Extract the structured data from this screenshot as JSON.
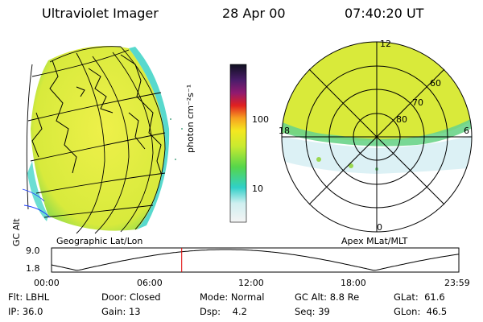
{
  "header": {
    "instrument": "Ultraviolet Imager",
    "date": "28 Apr 00",
    "time": "07:40:20 UT"
  },
  "colorbar": {
    "unit_label": "photon cm⁻²s⁻¹",
    "ticks": [
      "100",
      "10"
    ]
  },
  "panels": {
    "left_caption": "Geographic Lat/Lon",
    "right_caption": "Apex MLat/MLT",
    "polar": {
      "ring_labels": [
        "60",
        "70",
        "80"
      ],
      "mlt_labels": {
        "top": "12",
        "left": "18",
        "right": "6",
        "bottom": "0"
      }
    }
  },
  "altitude_plot": {
    "ylabel": "GC Alt",
    "y_ticks": [
      "9.0",
      "1.8"
    ],
    "x_ticks": [
      "00:00",
      "06:00",
      "12:00",
      "18:00",
      "23:59"
    ],
    "marker_hour": 7.67
  },
  "status": {
    "row1": [
      {
        "key": "Flt:",
        "value": "LBHL"
      },
      {
        "key": "Door:",
        "value": "Closed"
      },
      {
        "key": "Mode:",
        "value": "Normal"
      },
      {
        "key": "GC Alt:",
        "value": "8.8 Re"
      },
      {
        "key": "GLat:",
        "value": "61.6"
      }
    ],
    "row2": [
      {
        "key": "IP:",
        "value": "36.0"
      },
      {
        "key": "Gain:",
        "value": "13"
      },
      {
        "key": "Dsp:",
        "value": "4.2"
      },
      {
        "key": "Seq:",
        "value": "39"
      },
      {
        "key": "GLon:",
        "value": "46.5"
      }
    ]
  },
  "colors": {
    "accent_marker": "#e00000",
    "fill_main": "#e4ec3c",
    "fill_edge": "#2ed0c0"
  }
}
